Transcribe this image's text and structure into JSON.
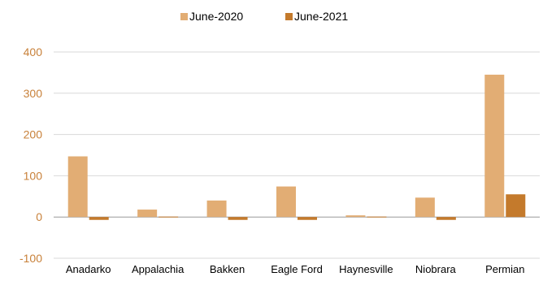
{
  "chart_data": {
    "type": "bar",
    "categories": [
      "Anadarko",
      "Appalachia",
      "Bakken",
      "Eagle Ford",
      "Haynesville",
      "Niobrara",
      "Permian"
    ],
    "series": [
      {
        "name": "June-2020",
        "color": "#e2ad74",
        "values": [
          147,
          18,
          40,
          74,
          4,
          47,
          345
        ]
      },
      {
        "name": "June-2021",
        "color": "#c47a2c",
        "values": [
          -7,
          1,
          -7,
          -7,
          1,
          -7,
          55
        ]
      }
    ],
    "ylim": [
      -100,
      400
    ],
    "yticks": [
      -100,
      0,
      100,
      200,
      300,
      400
    ],
    "grid": true,
    "legend_position": "top-center",
    "title": "",
    "xlabel": "",
    "ylabel": ""
  }
}
